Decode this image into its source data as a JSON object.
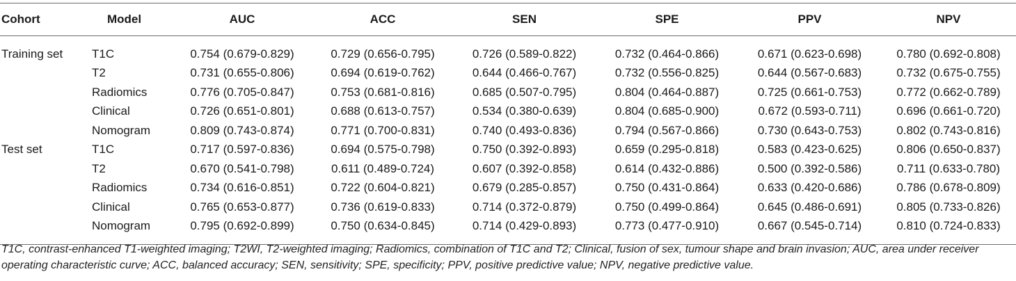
{
  "table": {
    "headers": [
      "Cohort",
      "Model",
      "AUC",
      "ACC",
      "SEN",
      "SPE",
      "PPV",
      "NPV"
    ],
    "rows": [
      {
        "cohort": "Training set",
        "model": "T1C",
        "values": [
          "0.754 (0.679-0.829)",
          "0.729 (0.656-0.795)",
          "0.726 (0.589-0.822)",
          "0.732 (0.464-0.866)",
          "0.671 (0.623-0.698)",
          "0.780 (0.692-0.808)"
        ]
      },
      {
        "cohort": "",
        "model": "T2",
        "values": [
          "0.731 (0.655-0.806)",
          "0.694 (0.619-0.762)",
          "0.644 (0.466-0.767)",
          "0.732 (0.556-0.825)",
          "0.644 (0.567-0.683)",
          "0.732 (0.675-0.755)"
        ]
      },
      {
        "cohort": "",
        "model": "Radiomics",
        "values": [
          "0.776 (0.705-0.847)",
          "0.753 (0.681-0.816)",
          "0.685 (0.507-0.795)",
          "0.804 (0.464-0.887)",
          "0.725 (0.661-0.753)",
          "0.772 (0.662-0.789)"
        ]
      },
      {
        "cohort": "",
        "model": "Clinical",
        "values": [
          "0.726 (0.651-0.801)",
          "0.688 (0.613-0.757)",
          "0.534 (0.380-0.639)",
          "0.804 (0.685-0.900)",
          "0.672 (0.593-0.711)",
          "0.696 (0.661-0.720)"
        ]
      },
      {
        "cohort": "",
        "model": "Nomogram",
        "values": [
          "0.809 (0.743-0.874)",
          "0.771 (0.700-0.831)",
          "0.740 (0.493-0.836)",
          "0.794 (0.567-0.866)",
          "0.730 (0.643-0.753)",
          "0.802 (0.743-0.816)"
        ]
      },
      {
        "cohort": "Test set",
        "model": "T1C",
        "values": [
          "0.717 (0.597-0.836)",
          "0.694 (0.575-0.798)",
          "0.750 (0.392-0.893)",
          "0.659 (0.295-0.818)",
          "0.583 (0.423-0.625)",
          "0.806 (0.650-0.837)"
        ]
      },
      {
        "cohort": "",
        "model": "T2",
        "values": [
          "0.670 (0.541-0.798)",
          "0.611 (0.489-0.724)",
          "0.607 (0.392-0.858)",
          "0.614 (0.432-0.886)",
          "0.500 (0.392-0.586)",
          "0.711 (0.633-0.780)"
        ]
      },
      {
        "cohort": "",
        "model": "Radiomics",
        "values": [
          "0.734 (0.616-0.851)",
          "0.722 (0.604-0.821)",
          "0.679 (0.285-0.857)",
          "0.750 (0.431-0.864)",
          "0.633 (0.420-0.686)",
          "0.786 (0.678-0.809)"
        ]
      },
      {
        "cohort": "",
        "model": "Clinical",
        "values": [
          "0.765 (0.653-0.877)",
          "0.736 (0.619-0.833)",
          "0.714 (0.372-0.879)",
          "0.750 (0.499-0.864)",
          "0.645 (0.486-0.691)",
          "0.805 (0.733-0.826)"
        ]
      },
      {
        "cohort": "",
        "model": "Nomogram",
        "values": [
          "0.795 (0.692-0.899)",
          "0.750 (0.634-0.845)",
          "0.714 (0.429-0.893)",
          "0.773 (0.477-0.910)",
          "0.667 (0.545-0.714)",
          "0.810 (0.724-0.833)"
        ]
      }
    ]
  },
  "footnote": "T1C, contrast-enhanced T1-weighted imaging; T2WI, T2-weighted imaging; Radiomics, combination of T1C and T2; Clinical, fusion of sex, tumour shape and brain invasion; AUC, area under receiver operating characteristic curve; ACC, balanced accuracy; SEN, sensitivity; SPE, specificity; PPV, positive predictive value; NPV, negative predictive value."
}
